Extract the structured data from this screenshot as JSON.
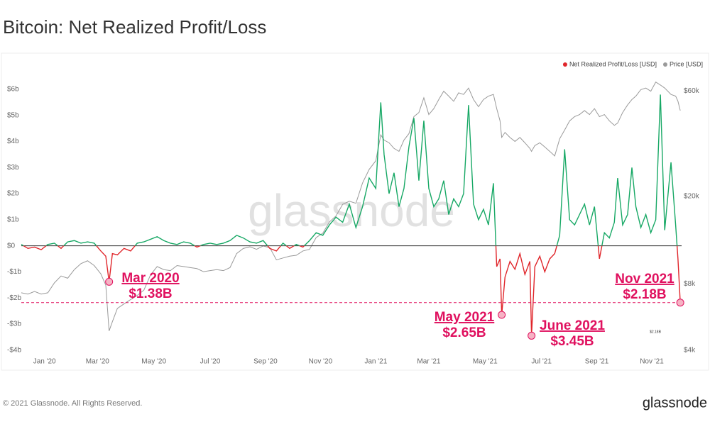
{
  "chart_data": {
    "type": "line",
    "title": "Bitcoin: Net Realized Profit/Loss",
    "watermark": "glassnode",
    "x": [
      2019.93,
      2019.95,
      2019.97,
      2019.99,
      2020.01,
      2020.03,
      2020.05,
      2020.07,
      2020.09,
      2020.11,
      2020.13,
      2020.15,
      2020.17,
      2020.185,
      2020.195,
      2020.205,
      2020.22,
      2020.24,
      2020.26,
      2020.28,
      2020.3,
      2020.32,
      2020.34,
      2020.36,
      2020.38,
      2020.4,
      2020.42,
      2020.44,
      2020.46,
      2020.48,
      2020.5,
      2020.52,
      2020.54,
      2020.56,
      2020.58,
      2020.6,
      2020.62,
      2020.64,
      2020.66,
      2020.68,
      2020.7,
      2020.72,
      2020.74,
      2020.76,
      2020.78,
      2020.8,
      2020.82,
      2020.84,
      2020.86,
      2020.88,
      2020.9,
      2020.92,
      2020.94,
      2020.96,
      2020.98,
      2021.0,
      2021.015,
      2021.025,
      2021.04,
      2021.055,
      2021.07,
      2021.085,
      2021.1,
      2021.115,
      2021.13,
      2021.145,
      2021.16,
      2021.175,
      2021.19,
      2021.205,
      2021.22,
      2021.235,
      2021.25,
      2021.265,
      2021.28,
      2021.295,
      2021.31,
      2021.325,
      2021.34,
      2021.355,
      2021.365,
      2021.375,
      2021.38,
      2021.39,
      2021.405,
      2021.42,
      2021.435,
      2021.45,
      2021.465,
      2021.47,
      2021.48,
      2021.495,
      2021.51,
      2021.525,
      2021.54,
      2021.555,
      2021.57,
      2021.585,
      2021.6,
      2021.615,
      2021.63,
      2021.645,
      2021.66,
      2021.675,
      2021.69,
      2021.705,
      2021.72,
      2021.73,
      2021.745,
      2021.76,
      2021.773,
      2021.785,
      2021.8,
      2021.815,
      2021.83,
      2021.845,
      2021.859,
      2021.872,
      2021.891,
      2021.905,
      2021.912,
      2021.919
    ],
    "series": [
      {
        "name": "Net Realized Profit/Loss [USD]",
        "color": "#e0262b",
        "positive_color": "#17a865",
        "values": [
          0.05,
          -0.1,
          -0.05,
          -0.15,
          0.05,
          0.1,
          -0.1,
          0.15,
          0.2,
          0.1,
          0.15,
          0.1,
          -0.2,
          -0.4,
          -1.38,
          -0.3,
          -0.35,
          -0.1,
          -0.2,
          0.1,
          0.15,
          0.25,
          0.35,
          0.2,
          0.1,
          0.05,
          0.15,
          0.1,
          -0.05,
          0.05,
          0.1,
          0.05,
          0.1,
          0.2,
          0.4,
          0.3,
          0.15,
          0.1,
          0.2,
          -0.1,
          -0.2,
          0.1,
          -0.1,
          0.05,
          -0.05,
          0.2,
          0.5,
          0.4,
          0.8,
          1.1,
          0.9,
          1.6,
          0.7,
          1.5,
          2.6,
          2.2,
          5.5,
          3.5,
          2.0,
          2.8,
          1.5,
          2.2,
          3.8,
          4.9,
          2.5,
          4.8,
          2.2,
          1.5,
          1.8,
          2.5,
          1.2,
          1.8,
          1.5,
          2.0,
          5.4,
          1.6,
          1.0,
          1.4,
          0.8,
          2.4,
          -0.8,
          -0.5,
          -2.65,
          -1.2,
          -0.6,
          -0.9,
          -0.3,
          -1.1,
          -0.6,
          -3.45,
          -0.8,
          -0.4,
          -1.0,
          -0.5,
          -0.3,
          0.4,
          3.7,
          1.0,
          0.8,
          1.2,
          1.6,
          0.8,
          1.5,
          -0.5,
          0.5,
          0.3,
          0.9,
          2.6,
          0.8,
          1.2,
          3.0,
          1.5,
          0.7,
          1.2,
          0.5,
          1.0,
          5.8,
          0.6,
          3.2,
          0.8,
          -0.5,
          -2.18
        ],
        "value_labels": [
          null,
          null,
          null,
          null,
          null,
          null,
          null,
          null,
          null,
          null,
          null,
          null,
          null,
          null,
          "$1.38B",
          null,
          null,
          null,
          null,
          null,
          null,
          null,
          null,
          null,
          null,
          null,
          null,
          null,
          null,
          null,
          null,
          null,
          null,
          null,
          null,
          null,
          null,
          null,
          null,
          null,
          null,
          null,
          null,
          null,
          null,
          null,
          null,
          null,
          null,
          null,
          null,
          null,
          null,
          null,
          null,
          null,
          null,
          null,
          null,
          null,
          null,
          null,
          null,
          null,
          null,
          null,
          null,
          null,
          null,
          null,
          null,
          null,
          null,
          null,
          null,
          null,
          null,
          null,
          null,
          null,
          null,
          null,
          "$2.65B",
          null,
          null,
          null,
          null,
          null,
          null,
          "$3.45B",
          null,
          null,
          null,
          null,
          null,
          null,
          null,
          null,
          null,
          null,
          null,
          null,
          null,
          null,
          null,
          null,
          null,
          null,
          null,
          null,
          null,
          null,
          null,
          null,
          null,
          null,
          null,
          null,
          null,
          null,
          null,
          "$2.18B"
        ],
        "annotation_titles": [
          null,
          null,
          null,
          null,
          null,
          null,
          null,
          null,
          null,
          null,
          null,
          null,
          null,
          null,
          "Mar 2020",
          null,
          null,
          null,
          null,
          null,
          null,
          null,
          null,
          null,
          null,
          null,
          null,
          null,
          null,
          null,
          null,
          null,
          null,
          null,
          null,
          null,
          null,
          null,
          null,
          null,
          null,
          null,
          null,
          null,
          null,
          null,
          null,
          null,
          null,
          null,
          null,
          null,
          null,
          null,
          null,
          null,
          null,
          null,
          null,
          null,
          null,
          null,
          null,
          null,
          null,
          null,
          null,
          null,
          null,
          null,
          null,
          null,
          null,
          null,
          null,
          null,
          null,
          null,
          null,
          null,
          null,
          null,
          "May 2021",
          null,
          null,
          null,
          null,
          null,
          null,
          "June 2021",
          null,
          null,
          null,
          null,
          null,
          null,
          null,
          null,
          null,
          null,
          null,
          null,
          null,
          null,
          null,
          null,
          null,
          null,
          null,
          null,
          null,
          null,
          null,
          null,
          null,
          null,
          null,
          null,
          null,
          null,
          null,
          "Nov 2021"
        ]
      },
      {
        "name": "Price [USD]",
        "color": "#9a9a9a",
        "axis": "y2",
        "values": [
          7300,
          7200,
          7400,
          7200,
          7300,
          8100,
          8700,
          8500,
          9300,
          9900,
          10200,
          9700,
          8900,
          7900,
          4900,
          5400,
          6200,
          6500,
          6800,
          7100,
          7500,
          8800,
          9600,
          9300,
          9200,
          9700,
          9600,
          9500,
          9400,
          9100,
          9200,
          9300,
          9200,
          9500,
          11000,
          11600,
          11800,
          11500,
          11900,
          11700,
          10300,
          10500,
          10700,
          10800,
          11300,
          11500,
          13000,
          13600,
          15300,
          16300,
          18400,
          19000,
          18600,
          23000,
          26500,
          29000,
          38000,
          36000,
          35000,
          33000,
          32000,
          36000,
          38500,
          46000,
          48000,
          56000,
          47000,
          50000,
          55000,
          60000,
          57000,
          54000,
          59000,
          58000,
          62000,
          55000,
          51000,
          55000,
          57000,
          58000,
          50000,
          44000,
          37000,
          39000,
          37000,
          35500,
          37000,
          35000,
          33000,
          32000,
          34000,
          35000,
          33500,
          32000,
          30500,
          36500,
          40000,
          44000,
          46000,
          47000,
          49000,
          47000,
          50000,
          46000,
          47000,
          44000,
          42000,
          43000,
          48000,
          52000,
          55000,
          57000,
          61000,
          62000,
          60000,
          66000,
          64000,
          62000,
          58000,
          57000,
          54000,
          49000
        ]
      }
    ],
    "xlim": [
      2019.93,
      2021.923
    ],
    "xticks": [
      {
        "value": 2020.0,
        "label": "Jan '20"
      },
      {
        "value": 2020.16,
        "label": "Mar '20"
      },
      {
        "value": 2020.33,
        "label": "May '20"
      },
      {
        "value": 2020.5,
        "label": "Jul '20"
      },
      {
        "value": 2020.667,
        "label": "Sep '20"
      },
      {
        "value": 2020.833,
        "label": "Nov '20"
      },
      {
        "value": 2021.0,
        "label": "Jan '21"
      },
      {
        "value": 2021.16,
        "label": "Mar '21"
      },
      {
        "value": 2021.33,
        "label": "May '21"
      },
      {
        "value": 2021.5,
        "label": "Jul '21"
      },
      {
        "value": 2021.667,
        "label": "Sep '21"
      },
      {
        "value": 2021.833,
        "label": "Nov '21"
      }
    ],
    "ylim": [
      -4.2,
      6.6
    ],
    "yticks": [
      {
        "value": 6,
        "label": "$6b"
      },
      {
        "value": 5,
        "label": "$5b"
      },
      {
        "value": 4,
        "label": "$4b"
      },
      {
        "value": 3,
        "label": "$3b"
      },
      {
        "value": 2,
        "label": "$2b"
      },
      {
        "value": 1,
        "label": "$1b"
      },
      {
        "value": 0,
        "label": "$0"
      },
      {
        "value": -1,
        "label": "-$1b"
      },
      {
        "value": -2,
        "label": "-$2b"
      },
      {
        "value": -3,
        "label": "-$3b"
      },
      {
        "value": -4,
        "label": "-$4b"
      }
    ],
    "y2lim": [
      3800,
      72000
    ],
    "y2_log": true,
    "y2ticks": [
      {
        "value": 4000,
        "label": "$4k"
      },
      {
        "value": 8000,
        "label": "$8k"
      },
      {
        "value": 20000,
        "label": "$20k"
      },
      {
        "value": 60000,
        "label": "$60k"
      }
    ],
    "grid": false,
    "legend": "top-right"
  },
  "footer": {
    "copyright": "© 2021 Glassnode. All Rights Reserved.",
    "brand": "glassnode"
  }
}
